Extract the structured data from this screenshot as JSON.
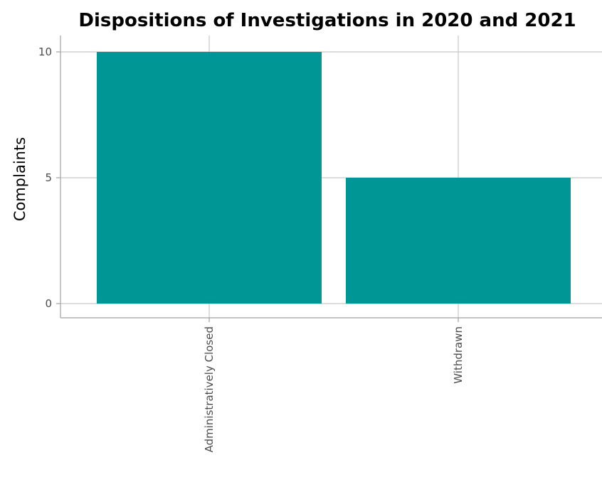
{
  "chart_data": {
    "type": "bar",
    "title": "Dispositions of Investigations in 2020 and 2021",
    "xlabel": "",
    "ylabel": "Complaints",
    "categories": [
      "Administratively Closed",
      "Withdrawn"
    ],
    "values": [
      10,
      5
    ],
    "ylim": [
      0,
      10
    ],
    "yticks": [
      0,
      5,
      10
    ],
    "bar_color": "#009696",
    "grid": true,
    "legend": "none"
  }
}
